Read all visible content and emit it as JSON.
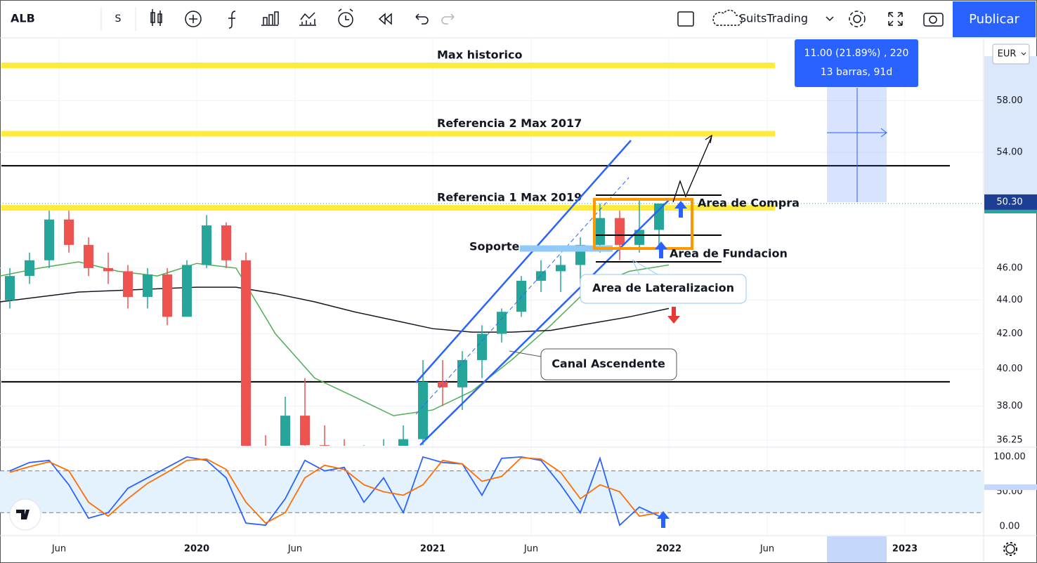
{
  "toolbar": {
    "symbol": "ALB",
    "interval": "S",
    "layout_name": "SuitsTrading",
    "publish": "Publicar"
  },
  "annotations": {
    "buy_area": "Area de Compra",
    "foundation_area": "Area de Fundacion",
    "sideways_area": "Area de Lateralizacion",
    "channel": "Canal Ascendente",
    "support": "Soporte",
    "measure_line1": "11.00 (21.89%) , 220",
    "measure_line2": "13 barras, 91d"
  },
  "chart_data": [
    {
      "type": "candlestick",
      "currency": "EUR",
      "log_scale": true,
      "grid": true,
      "x": [
        "2019-03",
        "2019-04",
        "2019-05",
        "2019-06",
        "2019-07",
        "2019-08",
        "2019-09",
        "2019-10",
        "2019-11",
        "2019-12",
        "2020-01",
        "2020-02",
        "2020-03",
        "2020-04",
        "2020-05",
        "2020-06",
        "2020-07",
        "2020-08",
        "2020-09",
        "2020-10",
        "2020-11",
        "2020-12",
        "2021-01",
        "2021-02",
        "2021-03",
        "2021-04",
        "2021-05",
        "2021-06",
        "2021-07",
        "2021-08",
        "2021-09",
        "2021-10",
        "2021-11",
        "2021-12"
      ],
      "open": [
        44,
        45.5,
        46.5,
        49.2,
        47.5,
        46,
        45.8,
        44.2,
        45.6,
        43,
        46.2,
        48.8,
        46.5,
        35,
        34.8,
        37.5,
        36,
        35.5,
        35,
        35.2,
        35.5,
        36.3,
        39.3,
        39,
        40.5,
        42,
        43.3,
        45.2,
        45.8,
        46.2,
        47.5,
        49.3,
        47.5,
        48.5
      ],
      "high": [
        46,
        47,
        49.8,
        49.8,
        48,
        47,
        46.2,
        46,
        46,
        46.5,
        49.5,
        49,
        47,
        36.5,
        38.5,
        39.5,
        37,
        36.3,
        36,
        36.3,
        37,
        40.5,
        40.5,
        41,
        42.5,
        43.5,
        45.5,
        46.5,
        46.8,
        48,
        50.3,
        49.8,
        50.5,
        50.3
      ],
      "low": [
        43.5,
        45,
        46,
        47,
        45.5,
        45,
        43.5,
        43.5,
        42.5,
        43,
        46,
        46,
        33,
        33.5,
        34,
        35,
        34,
        34.5,
        34,
        34.8,
        35,
        36,
        38,
        37.8,
        39.5,
        41.5,
        43,
        44.5,
        44.5,
        45,
        47,
        46.5,
        47,
        47.5
      ],
      "close": [
        45.5,
        46.5,
        49.2,
        47.5,
        46,
        45.8,
        44.2,
        45.6,
        43,
        46.2,
        48.8,
        46.5,
        35,
        34.8,
        37.5,
        36,
        35.5,
        35,
        35.2,
        35.5,
        36.3,
        39.3,
        39,
        40.5,
        42,
        43.3,
        45.2,
        45.8,
        46.2,
        47.5,
        49.3,
        47.5,
        48.5,
        50.3
      ],
      "up_color": "#26a69a",
      "down_color": "#ef5350",
      "series": [
        {
          "color": "#4caf50",
          "x": [
            "2019-03",
            "2019-05",
            "2019-07",
            "2019-09",
            "2019-11",
            "2020-01",
            "2020-03",
            "2020-05",
            "2020-07",
            "2020-09",
            "2020-11",
            "2021-01",
            "2021-03",
            "2021-05",
            "2021-07",
            "2021-09",
            "2021-11",
            "2022-01"
          ],
          "values": [
            45.5,
            46,
            46.4,
            45.8,
            45.5,
            46.3,
            46,
            42,
            39.5,
            38.5,
            37.5,
            37.8,
            38.8,
            40.5,
            42.5,
            44.8,
            45.8,
            46.2
          ]
        },
        {
          "color": "#131722",
          "x": [
            "2019-03",
            "2019-05",
            "2019-07",
            "2019-09",
            "2019-11",
            "2020-01",
            "2020-03",
            "2020-05",
            "2020-07",
            "2020-09",
            "2020-11",
            "2021-01",
            "2021-03",
            "2021-05",
            "2021-07",
            "2021-09",
            "2021-11",
            "2022-01"
          ],
          "values": [
            43.9,
            44.2,
            44.5,
            44.6,
            44.7,
            44.8,
            44.8,
            44.4,
            43.9,
            43.3,
            42.8,
            42.3,
            42.1,
            42.1,
            42.2,
            42.6,
            43,
            43.5
          ]
        }
      ],
      "levels": [
        {
          "label": "Max historico",
          "value": 60.9,
          "color": "#ffeb3b"
        },
        {
          "label": "Referencia 2 Max 2017",
          "value": 55.4,
          "color": "#ffeb3b"
        },
        {
          "value": 53,
          "color": "#000000"
        },
        {
          "label": "Referencia 1 Max 2019",
          "value": 50,
          "color": "#ffeb3b"
        },
        {
          "value": 39.3,
          "color": "#000000"
        }
      ],
      "last_price": {
        "value": 50.3,
        "label": "50.30"
      },
      "ylim": [
        35.97,
        63.2
      ],
      "yticks": [
        {
          "value": 58,
          "label": "58.00"
        },
        {
          "value": 54,
          "label": "54.00"
        },
        {
          "value": 46,
          "label": "46.00"
        },
        {
          "value": 44,
          "label": "44.00"
        },
        {
          "value": 42,
          "label": "42.00"
        },
        {
          "value": 40,
          "label": "40.00"
        },
        {
          "value": 38,
          "label": "38.00"
        },
        {
          "value": 36.25,
          "label": "36.25"
        }
      ],
      "xlim": [
        "2019-03",
        "2023-05"
      ],
      "xticks": [
        {
          "value": "2019-06",
          "label": "Jun"
        },
        {
          "value": "2020-01",
          "label": "2020"
        },
        {
          "value": "2020-06",
          "label": "Jun"
        },
        {
          "value": "2021-01",
          "label": "2021"
        },
        {
          "value": "2021-06",
          "label": "Jun"
        },
        {
          "value": "2022-01",
          "label": "2022"
        },
        {
          "value": "2022-06",
          "label": "Jun"
        },
        {
          "value": "2023-01",
          "label": "2023"
        }
      ]
    },
    {
      "type": "line",
      "band_color": "#e3f2fd",
      "x": [
        "2019-03",
        "2019-04",
        "2019-05",
        "2019-06",
        "2019-07",
        "2019-08",
        "2019-09",
        "2019-10",
        "2019-11",
        "2019-12",
        "2020-01",
        "2020-02",
        "2020-03",
        "2020-04",
        "2020-05",
        "2020-06",
        "2020-07",
        "2020-08",
        "2020-09",
        "2020-10",
        "2020-11",
        "2020-12",
        "2021-01",
        "2021-02",
        "2021-03",
        "2021-04",
        "2021-05",
        "2021-06",
        "2021-07",
        "2021-08",
        "2021-09",
        "2021-10",
        "2021-11",
        "2021-12"
      ],
      "series": [
        {
          "color": "#2962ff",
          "values": [
            80,
            92,
            95,
            60,
            12,
            20,
            55,
            70,
            85,
            100,
            95,
            70,
            5,
            2,
            40,
            95,
            80,
            85,
            35,
            70,
            20,
            100,
            92,
            90,
            45,
            98,
            100,
            95,
            60,
            20,
            98,
            2,
            28,
            15
          ]
        },
        {
          "color": "#ff6d00",
          "values": [
            78,
            86,
            93,
            80,
            35,
            15,
            40,
            62,
            78,
            95,
            97,
            82,
            35,
            5,
            20,
            70,
            88,
            82,
            60,
            50,
            45,
            60,
            95,
            90,
            65,
            72,
            99,
            97,
            78,
            40,
            60,
            50,
            15,
            20
          ]
        }
      ],
      "levels": [
        80,
        20
      ],
      "ylim": [
        -12,
        111
      ],
      "yticks": [
        {
          "value": 100,
          "label": "100.00"
        },
        {
          "value": 50,
          "label": "50.00"
        },
        {
          "value": 0,
          "label": "0.00"
        }
      ]
    }
  ]
}
